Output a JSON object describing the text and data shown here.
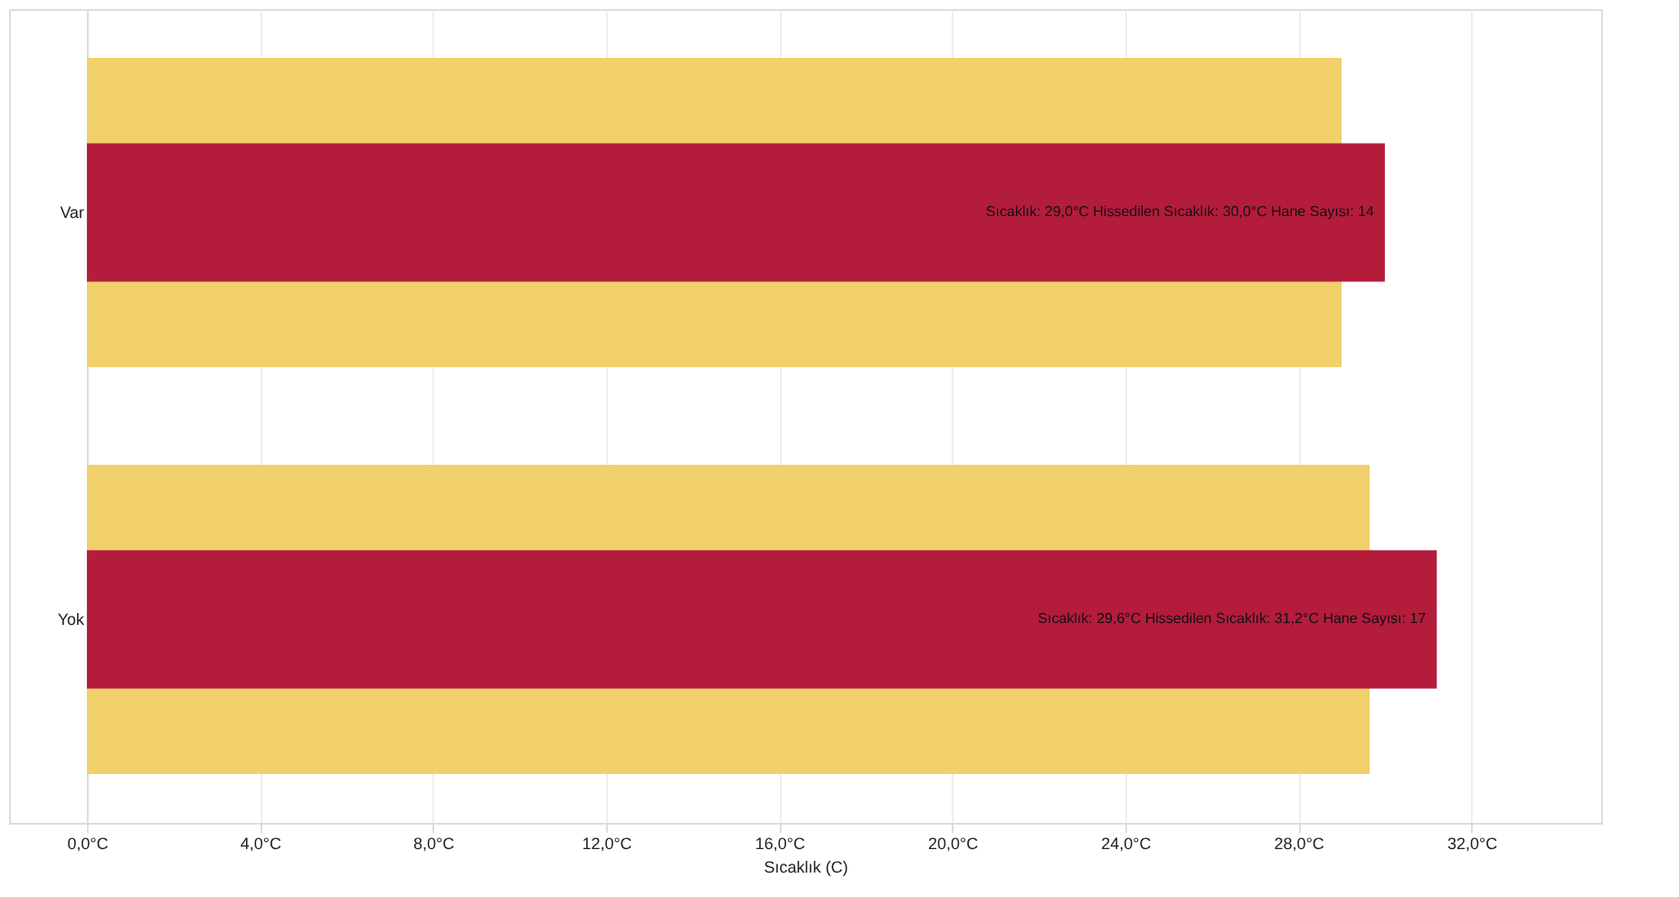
{
  "chart_data": {
    "type": "bar",
    "orientation": "horizontal",
    "xlabel": "Sıcaklık (C)",
    "categories": [
      "Var",
      "Yok"
    ],
    "series": [
      {
        "color": "#f2d06b",
        "values": [
          29.0,
          29.65
        ]
      },
      {
        "color": "#b41c3c",
        "values": [
          30.0,
          31.2
        ],
        "value_labels": [
          "Sıcaklık: 29,0°C   Hissedilen Sıcaklık: 30,0°C   Hane Sayısı: 14",
          "Sıcaklık: 29,6°C   Hissedilen Sıcaklık: 31,2°C   Hane Sayısı: 17"
        ]
      }
    ],
    "xlim": [
      -1.8,
      35
    ],
    "xticks": [
      {
        "value": 0,
        "label": "0,0°C"
      },
      {
        "value": 4,
        "label": "4,0°C"
      },
      {
        "value": 8,
        "label": "8,0°C"
      },
      {
        "value": 12,
        "label": "12,0°C"
      },
      {
        "value": 16,
        "label": "16,0°C"
      },
      {
        "value": 20,
        "label": "20,0°C"
      },
      {
        "value": 24,
        "label": "24,0°C"
      },
      {
        "value": 28,
        "label": "28,0°C"
      },
      {
        "value": 32,
        "label": "32,0°C"
      }
    ],
    "grid": "x"
  }
}
